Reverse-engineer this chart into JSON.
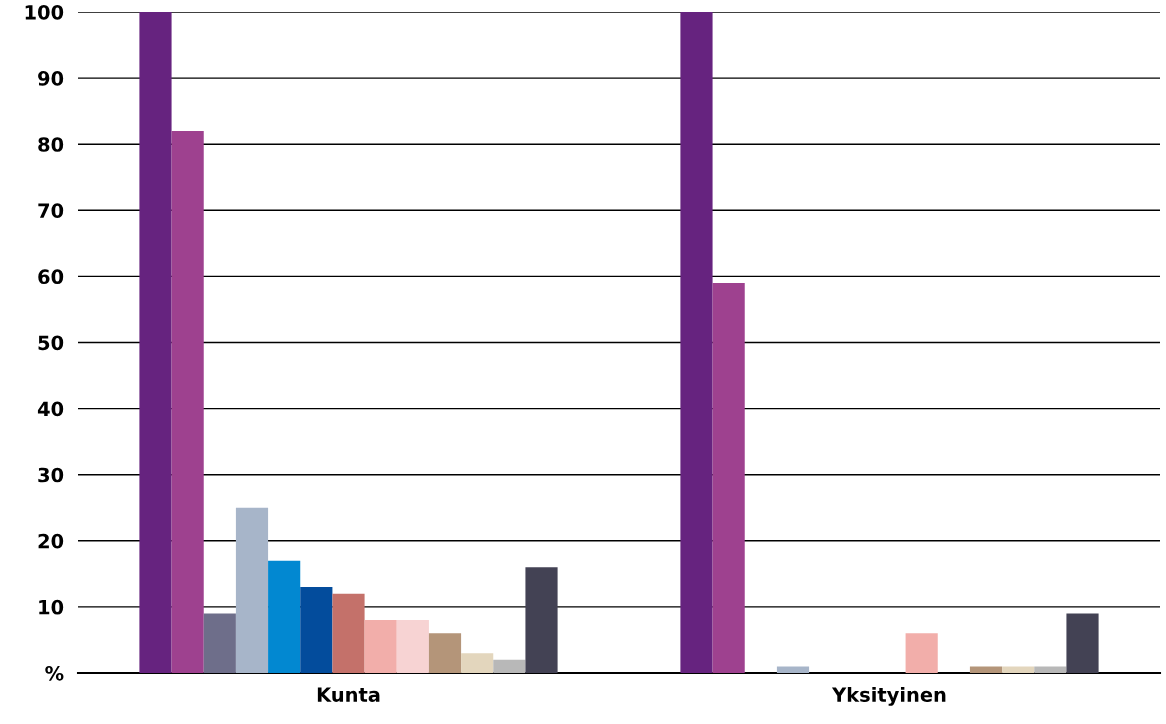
{
  "chart_data": {
    "type": "bar",
    "categories": [
      "Kunta",
      "Yksityinen"
    ],
    "series": [
      {
        "color": "#66237f",
        "values": [
          100,
          100
        ]
      },
      {
        "color": "#9e418f",
        "values": [
          82,
          59
        ]
      },
      {
        "color": "#6e6e8a",
        "values": [
          9,
          0
        ]
      },
      {
        "color": "#a7b5c9",
        "values": [
          25,
          1
        ]
      },
      {
        "color": "#0288d1",
        "values": [
          17,
          0
        ]
      },
      {
        "color": "#034c9c",
        "values": [
          13,
          0
        ]
      },
      {
        "color": "#c4716a",
        "values": [
          12,
          0
        ]
      },
      {
        "color": "#f2aeaa",
        "values": [
          8,
          6
        ]
      },
      {
        "color": "#f7d3d3",
        "values": [
          8,
          0
        ]
      },
      {
        "color": "#b49579",
        "values": [
          6,
          1
        ]
      },
      {
        "color": "#e3d6bd",
        "values": [
          3,
          1
        ]
      },
      {
        "color": "#b8b8b8",
        "values": [
          2,
          1
        ]
      },
      {
        "color": "#434254",
        "values": [
          16,
          9
        ]
      }
    ],
    "ylim": [
      0,
      100
    ],
    "yticks": [
      {
        "value": 0,
        "label": "%"
      },
      10,
      20,
      30,
      40,
      50,
      60,
      70,
      80,
      90,
      100
    ],
    "grid": "y",
    "legend": false
  }
}
